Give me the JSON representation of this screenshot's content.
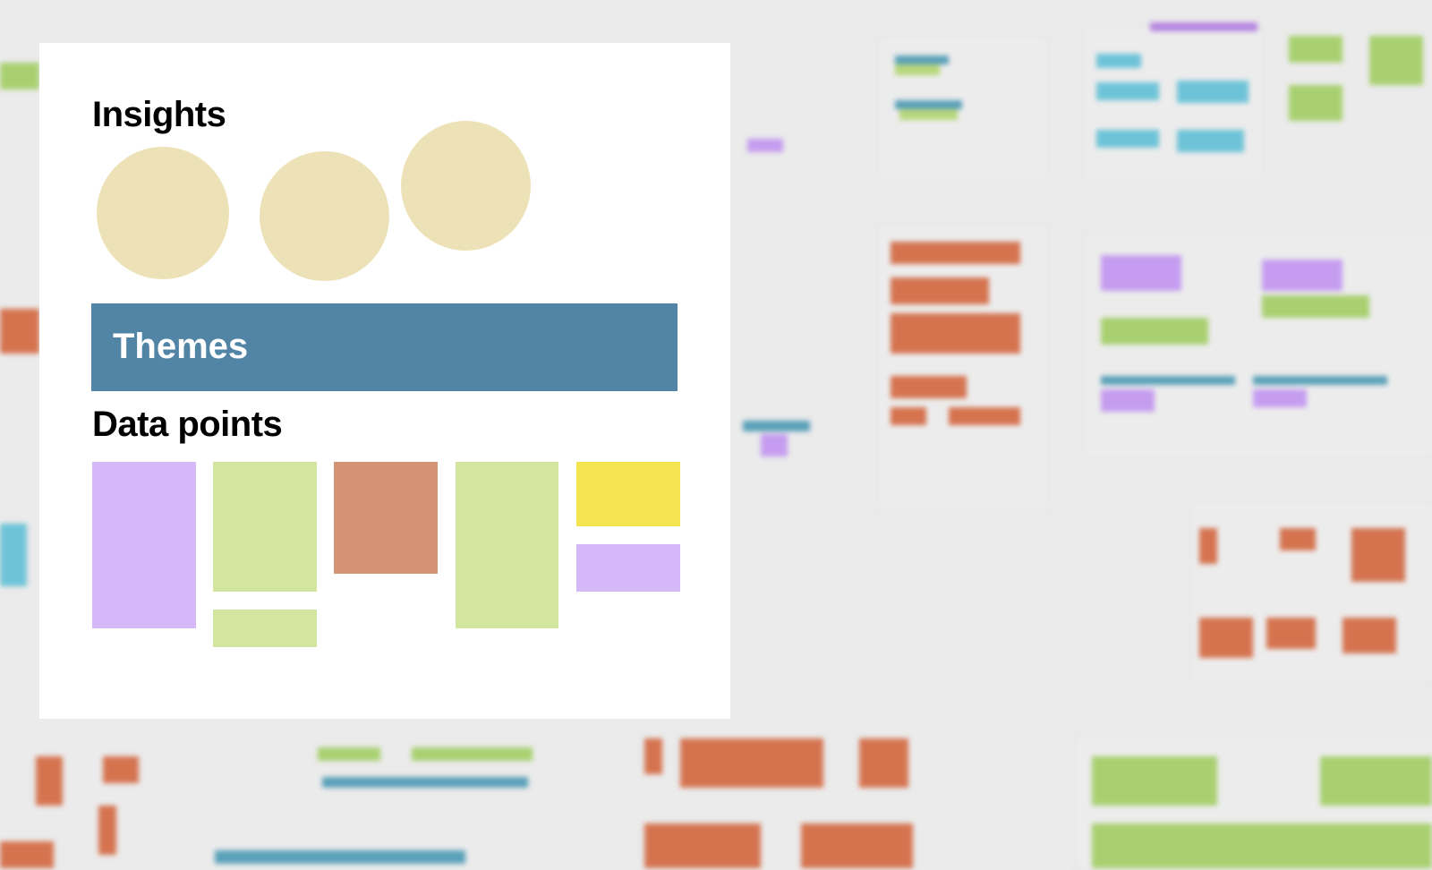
{
  "board": {
    "insights": {
      "heading": "Insights",
      "count": 3,
      "color": "#ede2b7"
    },
    "themes": {
      "label": "Themes",
      "color": "#5285a5"
    },
    "data_points": {
      "heading": "Data points",
      "notes": [
        {
          "color": "#d5b8f8"
        },
        {
          "color": "#d3e6a0"
        },
        {
          "color": "#d3e6a0"
        },
        {
          "color": "#d39374"
        },
        {
          "color": "#d3e6a0"
        },
        {
          "color": "#f5e44f"
        },
        {
          "color": "#d5b8f8"
        }
      ]
    }
  }
}
